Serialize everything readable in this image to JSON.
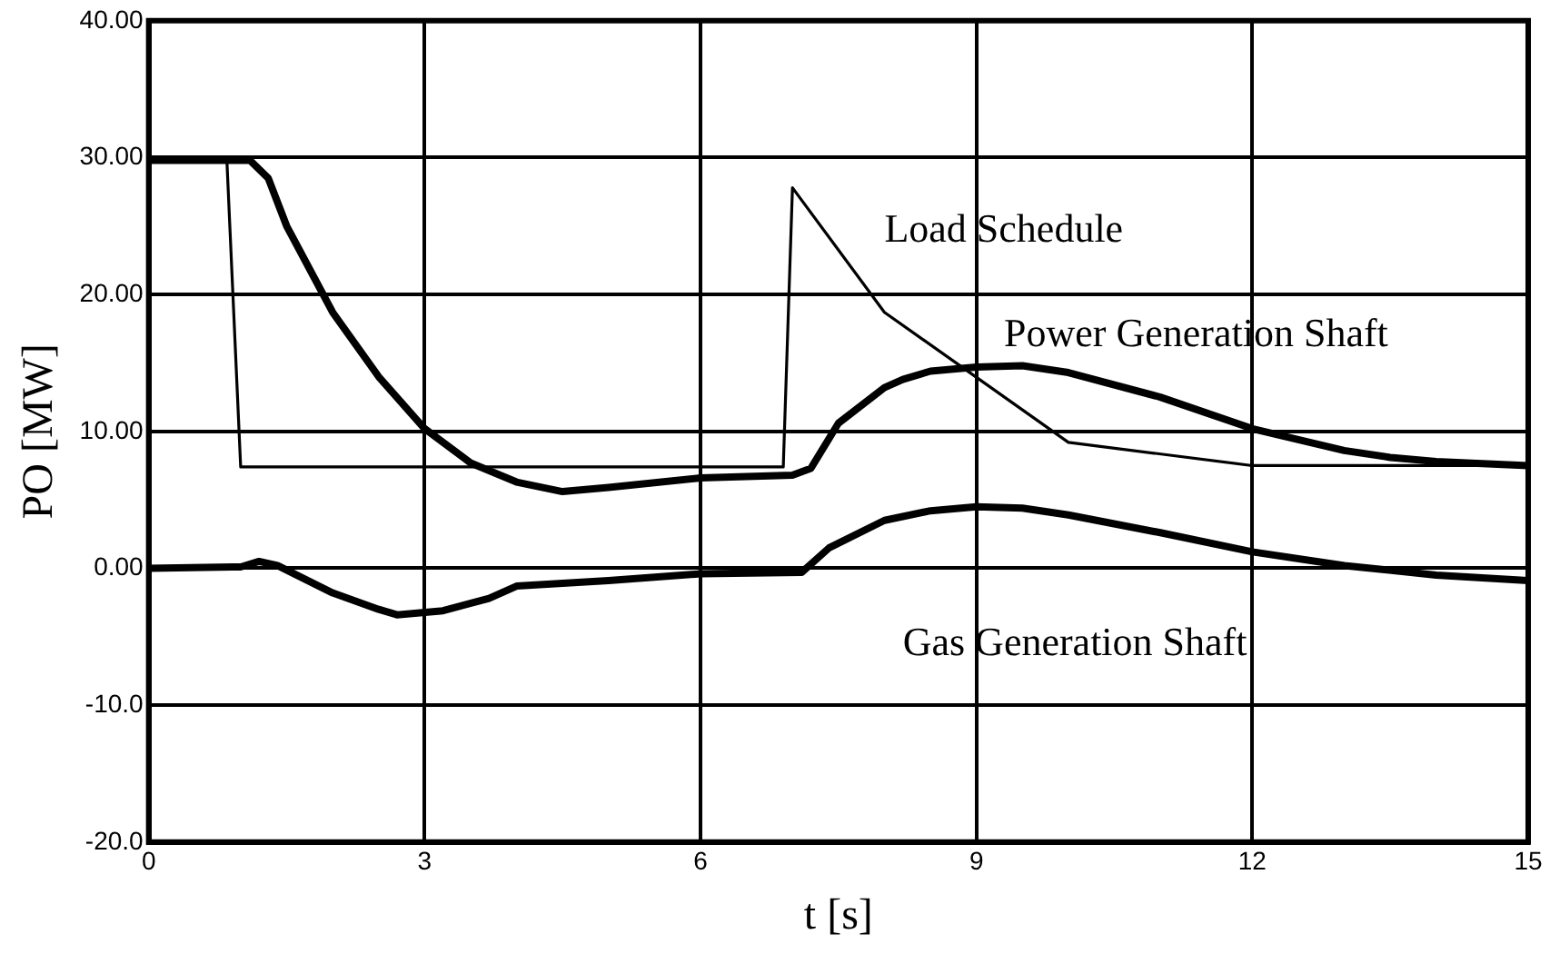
{
  "chart_data": {
    "type": "line",
    "xlabel": "t [s]",
    "ylabel": "PO [MW]",
    "xlim": [
      0,
      15
    ],
    "xticks": [
      0,
      3,
      6,
      9,
      12,
      15
    ],
    "ylim": [
      -20,
      40
    ],
    "yticks": [
      {
        "value": -20,
        "label": "-20.0"
      },
      {
        "value": -10,
        "label": "-10.0"
      },
      {
        "value": 0,
        "label": "0.00"
      },
      {
        "value": 10,
        "label": "10.00"
      },
      {
        "value": 20,
        "label": "20.00"
      },
      {
        "value": 30,
        "label": "30.00"
      },
      {
        "value": 40,
        "label": "40.00"
      }
    ],
    "grid": true,
    "legend": false,
    "marker": "none",
    "line_style": "solid",
    "series": [
      {
        "name": "Load Schedule",
        "color": "#000000",
        "x": [
          0,
          0.85,
          1.0,
          6.9,
          7.0,
          8.0,
          10.0,
          12.0,
          15.0
        ],
        "values": [
          29.8,
          29.8,
          7.4,
          7.4,
          27.8,
          18.7,
          9.2,
          7.5,
          7.5
        ]
      },
      {
        "name": "Power Generation Shaft",
        "color": "#000000",
        "x": [
          0,
          1.1,
          1.3,
          1.5,
          2,
          2.5,
          3,
          3.5,
          4,
          4.5,
          5,
          6,
          7,
          7.2,
          7.5,
          8,
          8.2,
          8.5,
          9,
          9.5,
          10,
          11,
          12,
          13,
          13.5,
          14,
          15
        ],
        "values": [
          29.8,
          29.8,
          28.5,
          25,
          18.7,
          14,
          10.2,
          7.7,
          6.3,
          5.6,
          5.9,
          6.6,
          6.8,
          7.3,
          10.6,
          13.2,
          13.8,
          14.4,
          14.7,
          14.8,
          14.3,
          12.5,
          10.2,
          8.6,
          8.1,
          7.8,
          7.5
        ]
      },
      {
        "name": "Gas Generation Shaft",
        "color": "#000000",
        "x": [
          0,
          1,
          1.2,
          1.4,
          2,
          2.5,
          2.7,
          3.2,
          3.7,
          4,
          5,
          6,
          7.1,
          7.4,
          8,
          8.5,
          9,
          9.5,
          10,
          11,
          12,
          13,
          14,
          15
        ],
        "values": [
          0,
          0.1,
          0.5,
          0.2,
          -1.8,
          -3.0,
          -3.4,
          -3.1,
          -2.2,
          -1.3,
          -0.9,
          -0.4,
          -0.3,
          1.5,
          3.5,
          4.2,
          4.5,
          4.4,
          3.9,
          2.6,
          1.2,
          0.2,
          -0.5,
          -0.9
        ]
      }
    ]
  }
}
